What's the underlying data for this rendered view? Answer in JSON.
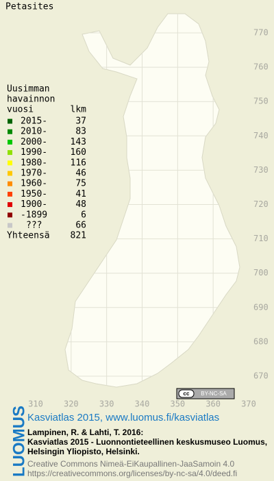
{
  "title": "Petasites",
  "legend": {
    "heading": [
      "Uusimman",
      "havainnon",
      "vuosi"
    ],
    "count_heading": "lkm",
    "rows": [
      {
        "label": "2015-",
        "count": 37,
        "color": "#006400"
      },
      {
        "label": "2010-",
        "count": 83,
        "color": "#008a00"
      },
      {
        "label": "2000-",
        "count": 143,
        "color": "#00c800"
      },
      {
        "label": "1990-",
        "count": 160,
        "color": "#90e000"
      },
      {
        "label": "1980-",
        "count": 116,
        "color": "#ffff00"
      },
      {
        "label": "1970-",
        "count": 46,
        "color": "#ffc800"
      },
      {
        "label": "1960-",
        "count": 75,
        "color": "#ff8c00"
      },
      {
        "label": "1950-",
        "count": 41,
        "color": "#ff4000"
      },
      {
        "label": "1900-",
        "count": 48,
        "color": "#e00000"
      },
      {
        "label": "-1899",
        "count": 6,
        "color": "#900000"
      },
      {
        "label": "???",
        "count": 66,
        "color": "#c8c8c8"
      }
    ],
    "total_label": "Yhteensä",
    "total": 821
  },
  "axes": {
    "y_ticks": [
      770,
      760,
      750,
      740,
      730,
      720,
      710,
      700,
      690,
      680,
      670
    ],
    "x_ticks": [
      310,
      320,
      330,
      340,
      350,
      360,
      370
    ]
  },
  "badge": {
    "cc": "cc",
    "terms": "BY-NC-SA"
  },
  "footer": {
    "logo": "LUOMUS",
    "atlas_link": "Kasviatlas 2015, www.luomus.fi/kasviatlas",
    "citation": [
      "Lampinen, R. & Lahti, T. 2016:",
      "Kasviatlas 2015 - Luonnontieteellinen keskusmuseo Luomus,",
      "Helsingin Yliopisto, Helsinki."
    ],
    "license": [
      "Creative Commons Nimeä-EiKaupallinen-JaaSamoin 4.0",
      "https://creativecommons.org/licenses/by-nc-sa/4.0/deed.fi"
    ]
  }
}
